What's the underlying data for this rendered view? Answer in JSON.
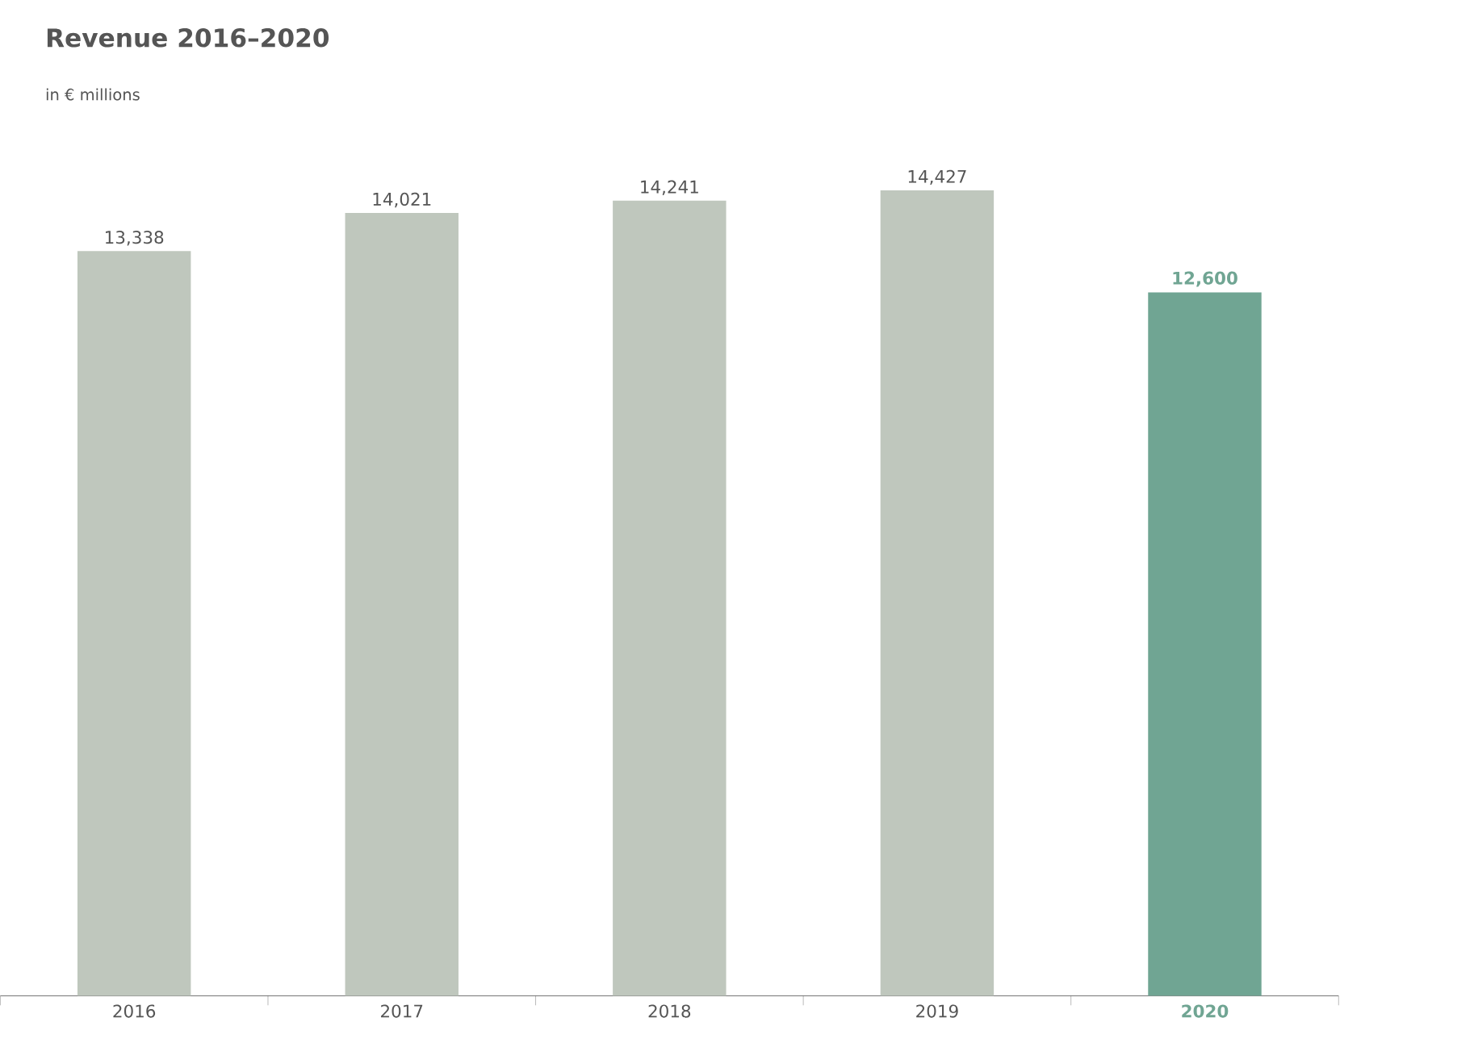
{
  "chart_data": {
    "type": "bar",
    "title": "Revenue 2016–2020",
    "subtitle": "in € millions",
    "categories": [
      "2016",
      "2017",
      "2018",
      "2019",
      "2020"
    ],
    "values": [
      13338,
      14021,
      14241,
      14427,
      12600
    ],
    "colors": [
      "#bfc7bd",
      "#bfc7bd",
      "#bfc7bd",
      "#bfc7bd",
      "#70a593"
    ],
    "value_labels": [
      "13,338",
      "14,021",
      "14,241",
      "14,427",
      "12,600"
    ],
    "tick_labels": "x"
  }
}
